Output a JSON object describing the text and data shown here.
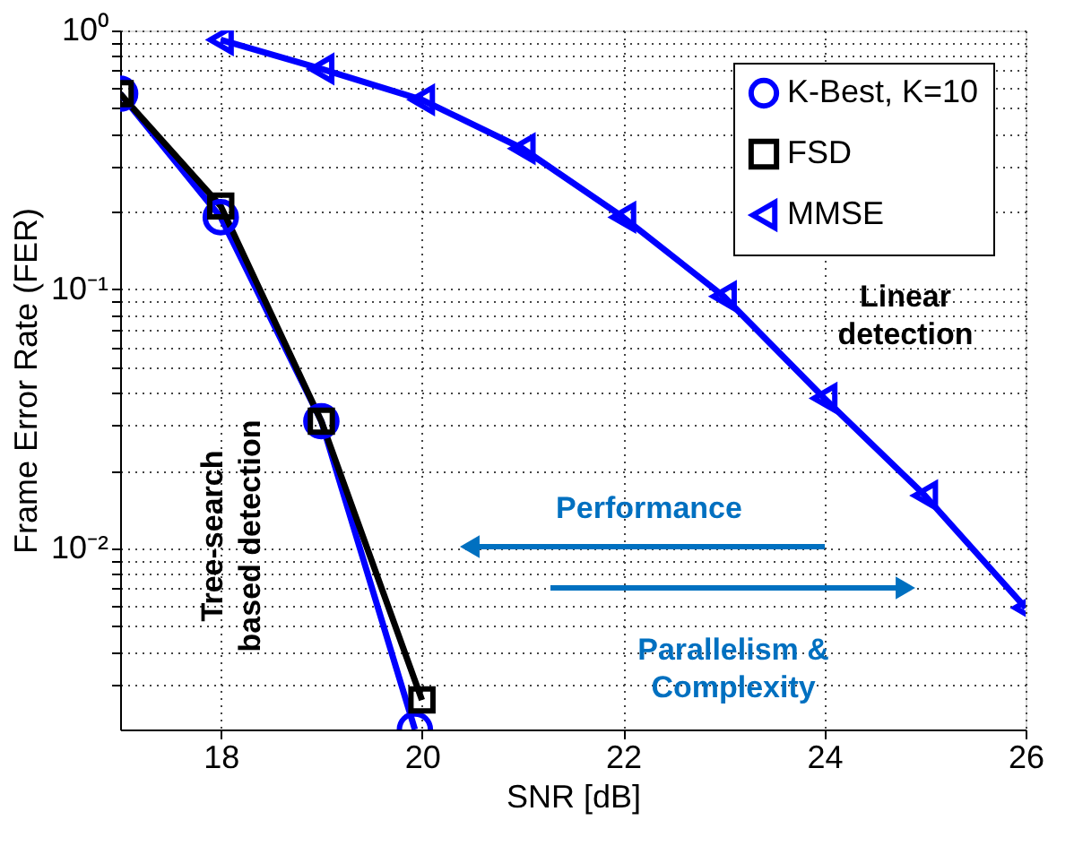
{
  "chart_data": {
    "type": "line",
    "xlabel": "SNR [dB]",
    "ylabel": "Frame Error Rate (FER)",
    "series": [
      {
        "name": "K-Best, K=10",
        "color": "#0000ff",
        "marker": "circle",
        "x": [
          17,
          18,
          19,
          19.93
        ],
        "values": [
          0.57,
          0.19,
          0.031,
          0.002
        ]
      },
      {
        "name": "FSD",
        "color": "#000000",
        "marker": "square",
        "x": [
          17,
          18,
          19,
          20
        ],
        "values": [
          0.57,
          0.21,
          0.031,
          0.0026
        ]
      },
      {
        "name": "MMSE",
        "color": "#0000ff",
        "marker": "triangle-left",
        "x": [
          18,
          19,
          20,
          21,
          22,
          23,
          24,
          25,
          26
        ],
        "values": [
          0.92,
          0.71,
          0.54,
          0.35,
          0.19,
          0.094,
          0.038,
          0.016,
          0.0059
        ]
      }
    ],
    "log": "y",
    "xlim": [
      17,
      26
    ],
    "ylim": [
      0.002,
      1
    ],
    "xticks": [
      18,
      20,
      22,
      24,
      26
    ],
    "yticks": [
      {
        "value": 0.003,
        "label": null
      },
      {
        "value": 0.004,
        "label": null
      },
      {
        "value": 0.005,
        "label": null
      },
      {
        "value": 0.006,
        "label": null
      },
      {
        "value": 0.007,
        "label": null
      },
      {
        "value": 0.008,
        "label": null
      },
      {
        "value": 0.009,
        "label": null
      },
      {
        "value": 0.01,
        "label": "10⁻²"
      },
      {
        "value": 0.02,
        "label": null
      },
      {
        "value": 0.03,
        "label": null
      },
      {
        "value": 0.04,
        "label": null
      },
      {
        "value": 0.05,
        "label": null
      },
      {
        "value": 0.06,
        "label": null
      },
      {
        "value": 0.07,
        "label": null
      },
      {
        "value": 0.08,
        "label": null
      },
      {
        "value": 0.09,
        "label": null
      },
      {
        "value": 0.1,
        "label": "10⁻¹"
      },
      {
        "value": 0.2,
        "label": null
      },
      {
        "value": 0.3,
        "label": null
      },
      {
        "value": 0.4,
        "label": null
      },
      {
        "value": 0.5,
        "label": null
      },
      {
        "value": 0.6,
        "label": null
      },
      {
        "value": 0.7,
        "label": null
      },
      {
        "value": 0.8,
        "label": null
      },
      {
        "value": 0.9,
        "label": null
      },
      {
        "value": 1,
        "label": "10⁰"
      }
    ],
    "grid": true,
    "legend": "top right",
    "line_style": "solid",
    "annotations": [
      "Tree-search based detection",
      "Linear detection",
      "Performance",
      "Parallelism & Complexity"
    ]
  }
}
